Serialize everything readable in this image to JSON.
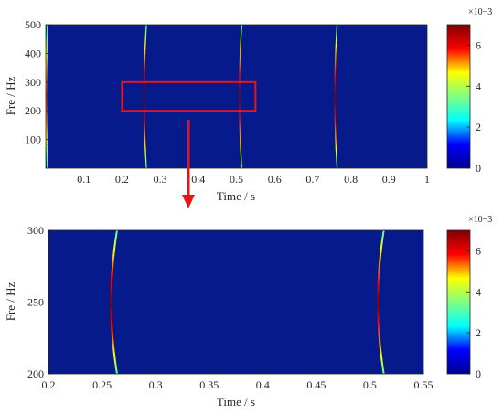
{
  "colormap": {
    "name": "jet",
    "background": "#061a8c",
    "stops": [
      "#00008f",
      "#0000ff",
      "#00ffff",
      "#80ff80",
      "#ffff00",
      "#ff0000",
      "#800000"
    ]
  },
  "arrow_color": "#e8141c",
  "highlight_box_color": "#e8141c",
  "chart_data": [
    {
      "type": "heatmap",
      "title": "",
      "xlabel": "Time / s",
      "ylabel": "Fre / Hz",
      "xlim": [
        0,
        1
      ],
      "ylim": [
        0,
        500
      ],
      "xticks": [
        0.1,
        0.2,
        0.3,
        0.4,
        0.5,
        0.6,
        0.7,
        0.8,
        0.9,
        1
      ],
      "xtick_labels": [
        "0.1",
        "0.2",
        "0.3",
        "0.4",
        "0.5",
        "0.6",
        "0.7",
        "0.8",
        "0.9",
        "1"
      ],
      "yticks": [
        100,
        200,
        300,
        400,
        500
      ],
      "ytick_labels": [
        "100",
        "200",
        "300",
        "400",
        "500"
      ],
      "colorbar": {
        "range": [
          0,
          0.007
        ],
        "ticks": [
          0,
          0.002,
          0.004,
          0.006
        ],
        "tick_labels": [
          "0",
          "2",
          "4",
          "6"
        ],
        "exponent_label": "×10−3"
      },
      "highlight_box": {
        "x": [
          0.2,
          0.55
        ],
        "y": [
          200,
          300
        ]
      },
      "ridges": [
        {
          "t_center": 0.002,
          "t_curve": -0.002,
          "peak": 0.006
        },
        {
          "t_center": 0.258,
          "t_curve": -0.006,
          "peak": 0.007
        },
        {
          "t_center": 0.508,
          "t_curve": -0.006,
          "peak": 0.007
        },
        {
          "t_center": 0.758,
          "t_curve": -0.006,
          "peak": 0.007
        }
      ],
      "grid": false
    },
    {
      "type": "heatmap",
      "title": "",
      "xlabel": "Time / s",
      "ylabel": "Fre / Hz",
      "xlim": [
        0.2,
        0.55
      ],
      "ylim": [
        200,
        300
      ],
      "xticks": [
        0.2,
        0.25,
        0.3,
        0.35,
        0.4,
        0.45,
        0.5,
        0.55
      ],
      "xtick_labels": [
        "0.2",
        "0.25",
        "0.3",
        "0.35",
        "0.4",
        "0.45",
        "0.5",
        "0.55"
      ],
      "yticks": [
        200,
        250,
        300
      ],
      "ytick_labels": [
        "200",
        "250",
        "300"
      ],
      "colorbar": {
        "range": [
          0,
          0.007
        ],
        "ticks": [
          0,
          0.002,
          0.004,
          0.006
        ],
        "tick_labels": [
          "0",
          "2",
          "4",
          "6"
        ],
        "exponent_label": "×10−3"
      },
      "ridges": [
        {
          "t_center": 0.2585,
          "t_curve": -0.0055,
          "peak": 0.007
        },
        {
          "t_center": 0.5075,
          "t_curve": -0.0055,
          "peak": 0.007
        }
      ],
      "grid": false
    }
  ]
}
